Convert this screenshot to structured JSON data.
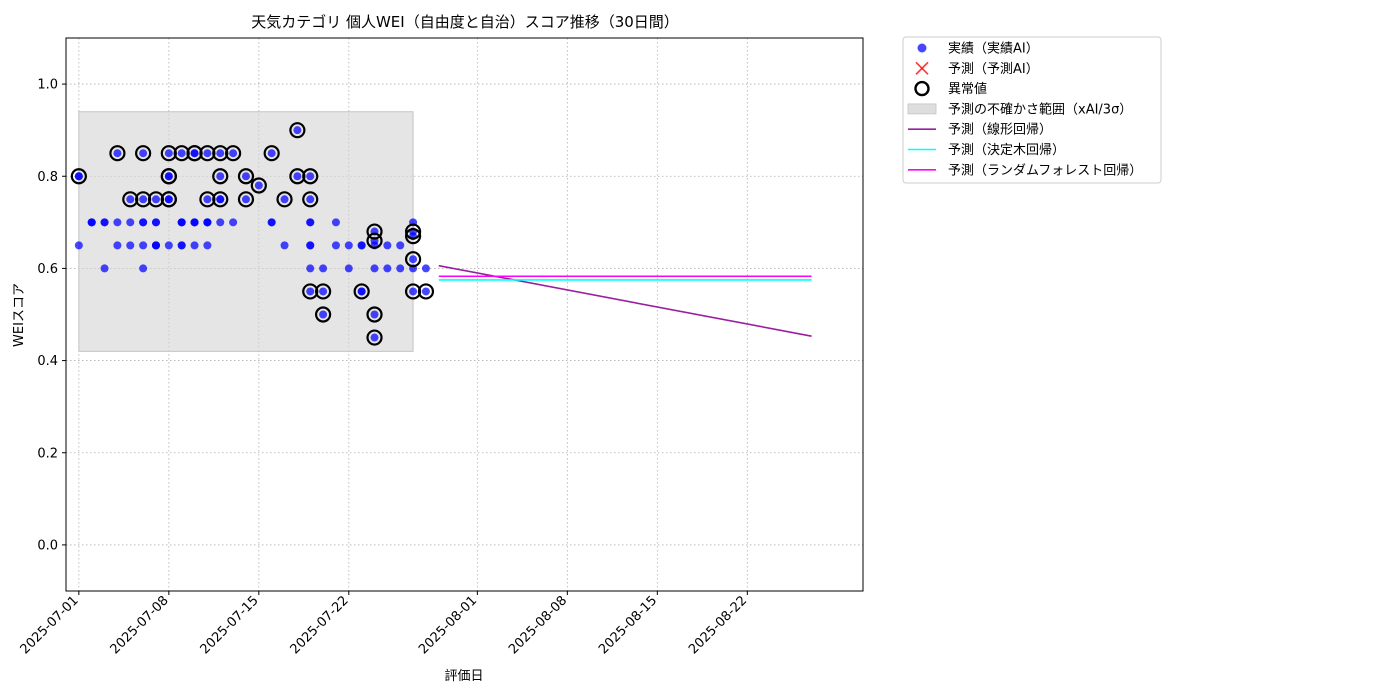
{
  "chart_data": {
    "type": "scatter",
    "title": "天気カテゴリ 個人WEI（自由度と自治）スコア推移（30日間）",
    "xlabel": "評価日",
    "ylabel": "WEIスコア",
    "xlim": [
      "2025-06-30",
      "2025-08-31"
    ],
    "ylim": [
      -0.1,
      1.1
    ],
    "x_ticks": [
      "2025-07-01",
      "2025-07-08",
      "2025-07-15",
      "2025-07-22",
      "2025-08-01",
      "2025-08-08",
      "2025-08-15",
      "2025-08-22"
    ],
    "y_ticks": [
      "0.0",
      "0.2",
      "0.4",
      "0.6",
      "0.8",
      "1.0"
    ],
    "grid": true,
    "legend_position": "outside-top-right",
    "legend": [
      {
        "label": "実績（実績AI）",
        "kind": "scatter",
        "color": "#0000ff"
      },
      {
        "label": "予測（予測AI）",
        "kind": "cross",
        "color": "#ff0000"
      },
      {
        "label": "異常値",
        "kind": "ring",
        "color": "#000000"
      },
      {
        "label": "予測の不確かさ範囲（xAI/3σ）",
        "kind": "band",
        "color": "#d3d3d3"
      },
      {
        "label": "予測（線形回帰）",
        "kind": "line",
        "color": "#9b1ea0"
      },
      {
        "label": "予測（決定木回帰）",
        "kind": "line",
        "color": "#00ffff"
      },
      {
        "label": "予測（ランダムフォレスト回帰）",
        "kind": "line",
        "color": "#ff00ff"
      }
    ],
    "uncertainty_band": {
      "x": [
        "2025-07-01",
        "2025-07-27"
      ],
      "y": [
        0.42,
        0.94
      ]
    },
    "series": [
      {
        "name": "実績（実績AI）",
        "type": "scatter",
        "color": "#0000ff",
        "points": [
          [
            "2025-07-01",
            0.8
          ],
          [
            "2025-07-01",
            0.65
          ],
          [
            "2025-07-01",
            0.8
          ],
          [
            "2025-07-02",
            0.7
          ],
          [
            "2025-07-02",
            0.7
          ],
          [
            "2025-07-02",
            0.7
          ],
          [
            "2025-07-03",
            0.7
          ],
          [
            "2025-07-03",
            0.6
          ],
          [
            "2025-07-03",
            0.7
          ],
          [
            "2025-07-04",
            0.85
          ],
          [
            "2025-07-04",
            0.65
          ],
          [
            "2025-07-04",
            0.7
          ],
          [
            "2025-07-05",
            0.65
          ],
          [
            "2025-07-05",
            0.75
          ],
          [
            "2025-07-05",
            0.7
          ],
          [
            "2025-07-06",
            0.7
          ],
          [
            "2025-07-06",
            0.6
          ],
          [
            "2025-07-06",
            0.65
          ],
          [
            "2025-07-06",
            0.85
          ],
          [
            "2025-07-06",
            0.75
          ],
          [
            "2025-07-06",
            0.7
          ],
          [
            "2025-07-07",
            0.7
          ],
          [
            "2025-07-07",
            0.65
          ],
          [
            "2025-07-07",
            0.7
          ],
          [
            "2025-07-07",
            0.65
          ],
          [
            "2025-07-07",
            0.65
          ],
          [
            "2025-07-07",
            0.75
          ],
          [
            "2025-07-08",
            0.75
          ],
          [
            "2025-07-08",
            0.65
          ],
          [
            "2025-07-08",
            0.85
          ],
          [
            "2025-07-08",
            0.8
          ],
          [
            "2025-07-08",
            0.75
          ],
          [
            "2025-07-08",
            0.8
          ],
          [
            "2025-07-09",
            0.7
          ],
          [
            "2025-07-09",
            0.7
          ],
          [
            "2025-07-09",
            0.65
          ],
          [
            "2025-07-09",
            0.85
          ],
          [
            "2025-07-09",
            0.65
          ],
          [
            "2025-07-09",
            0.7
          ],
          [
            "2025-07-10",
            0.7
          ],
          [
            "2025-07-10",
            0.85
          ],
          [
            "2025-07-10",
            0.7
          ],
          [
            "2025-07-10",
            0.85
          ],
          [
            "2025-07-10",
            0.65
          ],
          [
            "2025-07-10",
            0.7
          ],
          [
            "2025-07-11",
            0.65
          ],
          [
            "2025-07-11",
            0.85
          ],
          [
            "2025-07-11",
            0.7
          ],
          [
            "2025-07-11",
            0.75
          ],
          [
            "2025-07-11",
            0.7
          ],
          [
            "2025-07-11",
            0.7
          ],
          [
            "2025-07-12",
            0.85
          ],
          [
            "2025-07-12",
            0.8
          ],
          [
            "2025-07-12",
            0.7
          ],
          [
            "2025-07-12",
            0.75
          ],
          [
            "2025-07-12",
            0.75
          ],
          [
            "2025-07-13",
            0.85
          ],
          [
            "2025-07-13",
            0.7
          ],
          [
            "2025-07-14",
            0.8
          ],
          [
            "2025-07-14",
            0.75
          ],
          [
            "2025-07-15",
            0.78
          ],
          [
            "2025-07-16",
            0.7
          ],
          [
            "2025-07-16",
            0.85
          ],
          [
            "2025-07-16",
            0.7
          ],
          [
            "2025-07-17",
            0.75
          ],
          [
            "2025-07-17",
            0.65
          ],
          [
            "2025-07-18",
            0.9
          ],
          [
            "2025-07-18",
            0.8
          ],
          [
            "2025-07-19",
            0.8
          ],
          [
            "2025-07-19",
            0.75
          ],
          [
            "2025-07-19",
            0.7
          ],
          [
            "2025-07-19",
            0.7
          ],
          [
            "2025-07-19",
            0.65
          ],
          [
            "2025-07-19",
            0.65
          ],
          [
            "2025-07-19",
            0.6
          ],
          [
            "2025-07-19",
            0.55
          ],
          [
            "2025-07-20",
            0.55
          ],
          [
            "2025-07-20",
            0.6
          ],
          [
            "2025-07-20",
            0.5
          ],
          [
            "2025-07-21",
            0.65
          ],
          [
            "2025-07-21",
            0.7
          ],
          [
            "2025-07-22",
            0.65
          ],
          [
            "2025-07-22",
            0.6
          ],
          [
            "2025-07-23",
            0.55
          ],
          [
            "2025-07-23",
            0.65
          ],
          [
            "2025-07-23",
            0.65
          ],
          [
            "2025-07-23",
            0.55
          ],
          [
            "2025-07-24",
            0.45
          ],
          [
            "2025-07-24",
            0.5
          ],
          [
            "2025-07-24",
            0.65
          ],
          [
            "2025-07-24",
            0.68
          ],
          [
            "2025-07-24",
            0.66
          ],
          [
            "2025-07-24",
            0.6
          ],
          [
            "2025-07-25",
            0.6
          ],
          [
            "2025-07-25",
            0.65
          ],
          [
            "2025-07-26",
            0.6
          ],
          [
            "2025-07-26",
            0.65
          ],
          [
            "2025-07-27",
            0.55
          ],
          [
            "2025-07-27",
            0.6
          ],
          [
            "2025-07-27",
            0.67
          ],
          [
            "2025-07-27",
            0.68
          ],
          [
            "2025-07-27",
            0.7
          ],
          [
            "2025-07-27",
            0.62
          ],
          [
            "2025-07-28",
            0.6
          ],
          [
            "2025-07-28",
            0.55
          ]
        ]
      },
      {
        "name": "異常値",
        "type": "ring",
        "color": "#000000",
        "points": [
          [
            "2025-07-01",
            0.8
          ],
          [
            "2025-07-04",
            0.85
          ],
          [
            "2025-07-05",
            0.75
          ],
          [
            "2025-07-06",
            0.85
          ],
          [
            "2025-07-06",
            0.75
          ],
          [
            "2025-07-07",
            0.75
          ],
          [
            "2025-07-08",
            0.75
          ],
          [
            "2025-07-08",
            0.85
          ],
          [
            "2025-07-08",
            0.8
          ],
          [
            "2025-07-08",
            0.8
          ],
          [
            "2025-07-08",
            0.75
          ],
          [
            "2025-07-09",
            0.85
          ],
          [
            "2025-07-10",
            0.85
          ],
          [
            "2025-07-10",
            0.85
          ],
          [
            "2025-07-11",
            0.85
          ],
          [
            "2025-07-11",
            0.75
          ],
          [
            "2025-07-12",
            0.85
          ],
          [
            "2025-07-12",
            0.8
          ],
          [
            "2025-07-12",
            0.75
          ],
          [
            "2025-07-13",
            0.85
          ],
          [
            "2025-07-14",
            0.8
          ],
          [
            "2025-07-14",
            0.75
          ],
          [
            "2025-07-15",
            0.78
          ],
          [
            "2025-07-16",
            0.85
          ],
          [
            "2025-07-17",
            0.75
          ],
          [
            "2025-07-18",
            0.9
          ],
          [
            "2025-07-18",
            0.8
          ],
          [
            "2025-07-19",
            0.8
          ],
          [
            "2025-07-19",
            0.75
          ],
          [
            "2025-07-19",
            0.55
          ],
          [
            "2025-07-20",
            0.55
          ],
          [
            "2025-07-20",
            0.5
          ],
          [
            "2025-07-23",
            0.55
          ],
          [
            "2025-07-24",
            0.5
          ],
          [
            "2025-07-24",
            0.45
          ],
          [
            "2025-07-24",
            0.68
          ],
          [
            "2025-07-24",
            0.66
          ],
          [
            "2025-07-27",
            0.55
          ],
          [
            "2025-07-27",
            0.67
          ],
          [
            "2025-07-27",
            0.68
          ],
          [
            "2025-07-27",
            0.62
          ],
          [
            "2025-07-28",
            0.55
          ]
        ]
      },
      {
        "name": "予測（線形回帰）",
        "type": "line",
        "color": "#9b1ea0",
        "x": [
          "2025-07-29",
          "2025-08-27"
        ],
        "y": [
          0.606,
          0.453
        ]
      },
      {
        "name": "予測（決定木回帰）",
        "type": "line",
        "color": "#00ffff",
        "x": [
          "2025-07-29",
          "2025-08-27"
        ],
        "y": [
          0.575,
          0.575
        ]
      },
      {
        "name": "予測（ランダムフォレスト回帰）",
        "type": "line",
        "color": "#ff00ff",
        "x": [
          "2025-07-29",
          "2025-08-27"
        ],
        "y": [
          0.583,
          0.583
        ]
      }
    ]
  }
}
